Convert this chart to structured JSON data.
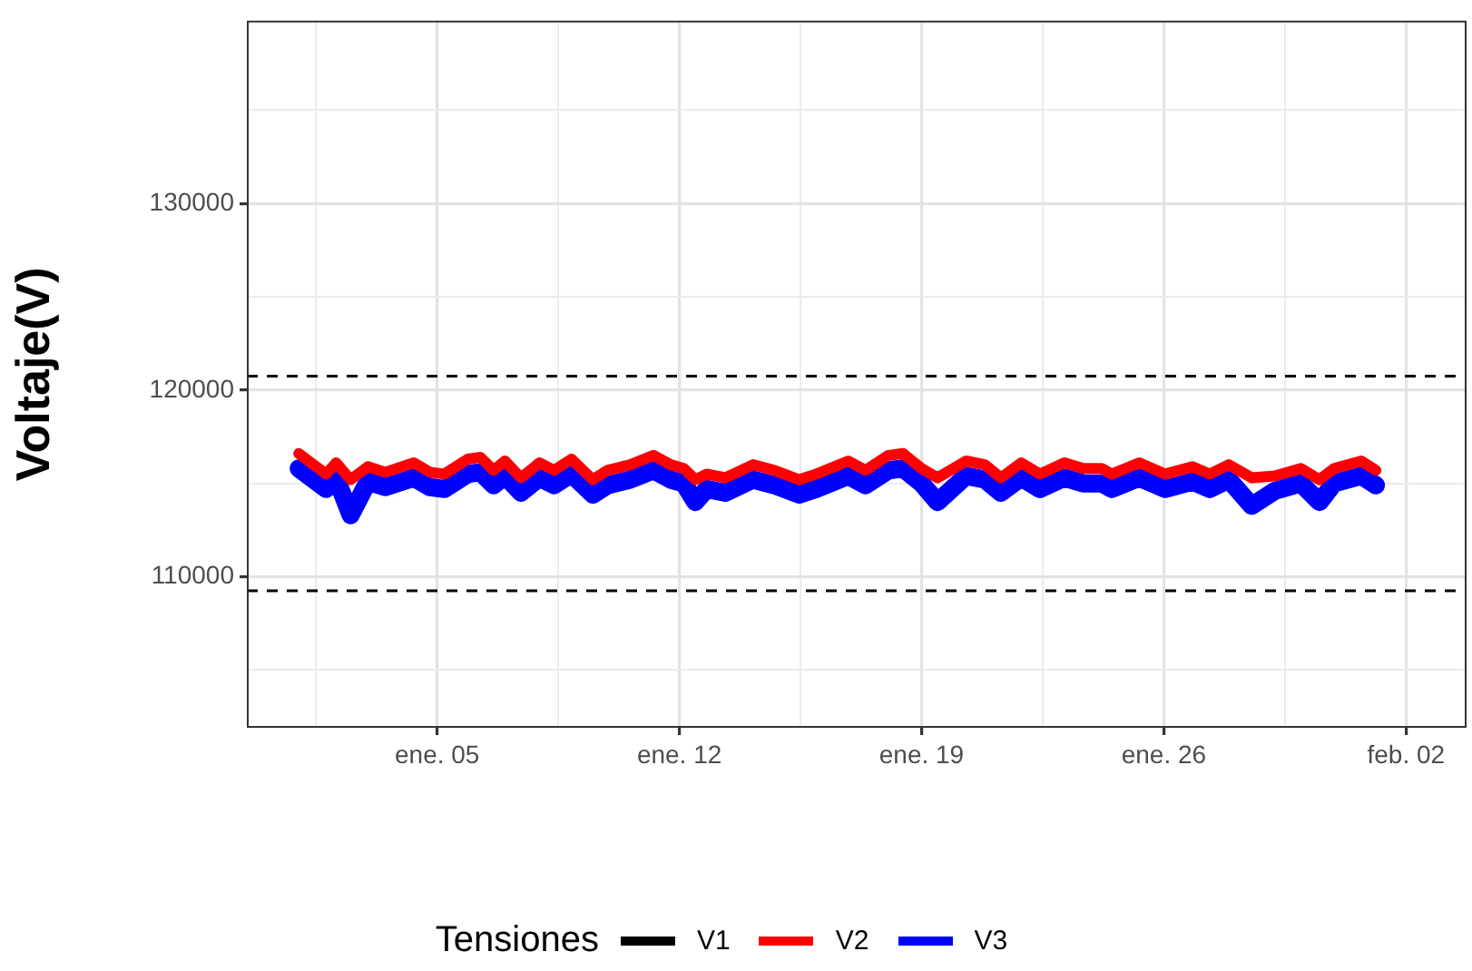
{
  "chart_data": {
    "type": "line",
    "ylabel": "Voltaje(V)",
    "legend_title": "Tensiones",
    "legend": "bottom",
    "grid": true,
    "marker": "none",
    "line_style": "solid",
    "xlim": [
      -0.5,
      34.75
    ],
    "xticks": [
      {
        "value": 1.5,
        "label": null
      },
      {
        "value": 5,
        "label": "ene. 05"
      },
      {
        "value": 8.5,
        "label": null
      },
      {
        "value": 12,
        "label": "ene. 12"
      },
      {
        "value": 15.5,
        "label": null
      },
      {
        "value": 19,
        "label": "ene. 19"
      },
      {
        "value": 22.5,
        "label": null
      },
      {
        "value": 26,
        "label": "ene. 26"
      },
      {
        "value": 29.5,
        "label": null
      },
      {
        "value": 33,
        "label": "feb. 02"
      }
    ],
    "ylim": [
      101900,
      139800
    ],
    "yticks": [
      {
        "value": 105000,
        "label": null
      },
      110000,
      {
        "value": 115000,
        "label": null
      },
      120000,
      {
        "value": 125000,
        "label": null
      },
      130000,
      {
        "value": 135000,
        "label": null
      }
    ],
    "x": [
      1,
      1.79,
      2.08,
      2.5,
      3,
      3.5,
      4.33,
      4.79,
      5.21,
      5.88,
      6.25,
      6.63,
      6.96,
      7.42,
      7.96,
      8.38,
      8.88,
      9.5,
      9.92,
      10.58,
      11.25,
      11.75,
      12.13,
      12.46,
      12.79,
      13.33,
      14.13,
      14.75,
      15.46,
      15.96,
      16.88,
      17.38,
      18.04,
      18.46,
      19,
      19.46,
      20.29,
      20.83,
      21.29,
      21.88,
      22.42,
      23.13,
      23.67,
      24.21,
      24.5,
      25.29,
      26.04,
      26.83,
      27.33,
      27.88,
      28.54,
      29.21,
      29.96,
      30.5,
      30.92,
      31.71,
      32.13
    ],
    "series": [
      {
        "name": "V1",
        "color": "#000000",
        "values": [
          null,
          null,
          null,
          null,
          null,
          null,
          null,
          null,
          null,
          null,
          null,
          null,
          null,
          null,
          null,
          null,
          null,
          null,
          null,
          null,
          null,
          null,
          null,
          null,
          null,
          null,
          null,
          null,
          null,
          null,
          null,
          null,
          null,
          null,
          null,
          null,
          null,
          null,
          null,
          null,
          null,
          null,
          null,
          null,
          null,
          null,
          null,
          null,
          null,
          null,
          null,
          null,
          null,
          null,
          null,
          null,
          null
        ]
      },
      {
        "name": "V2",
        "color": "#ff0000",
        "values": [
          116600,
          115500,
          116100,
          115200,
          115900,
          115600,
          116100,
          115600,
          115500,
          116300,
          116400,
          115700,
          116200,
          115300,
          116100,
          115700,
          116300,
          115200,
          115700,
          116000,
          116500,
          116000,
          115800,
          115200,
          115500,
          115300,
          116000,
          115700,
          115200,
          115500,
          116200,
          115700,
          116500,
          116600,
          115800,
          115300,
          116200,
          116000,
          115300,
          116100,
          115500,
          116100,
          115800,
          115800,
          115500,
          116100,
          115500,
          115900,
          115500,
          116000,
          115300,
          115400,
          115800,
          115200,
          115800,
          116200,
          115700
        ]
      },
      {
        "name": "V3",
        "color": "#0000ff",
        "values": [
          115800,
          114700,
          115300,
          113300,
          115100,
          114800,
          115300,
          114800,
          114700,
          115500,
          115600,
          114900,
          115400,
          114500,
          115300,
          114900,
          115500,
          114400,
          114900,
          115200,
          115700,
          115200,
          115000,
          114000,
          114700,
          114500,
          115200,
          114900,
          114400,
          114700,
          115400,
          114900,
          115700,
          115800,
          115000,
          114000,
          115400,
          115200,
          114500,
          115300,
          114700,
          115300,
          115000,
          115000,
          114700,
          115300,
          114700,
          115100,
          114700,
          115200,
          113800,
          114600,
          115000,
          114000,
          115000,
          115400,
          114900
        ]
      }
    ],
    "ref_lines": [
      {
        "axis": "y",
        "value": 120750,
        "line_style": "dashed",
        "color": "#000000"
      },
      {
        "axis": "y",
        "value": 109250,
        "line_style": "dashed",
        "color": "#000000"
      }
    ]
  }
}
